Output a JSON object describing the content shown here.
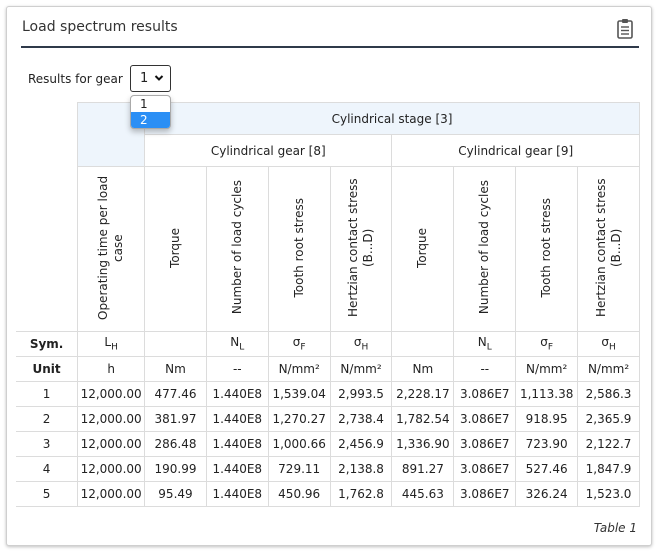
{
  "panel": {
    "title": "Load spectrum results",
    "clipboard_icon": "clipboard-icon"
  },
  "gear_selector": {
    "label": "Results for gear",
    "selected": "1",
    "options": [
      "1",
      "2"
    ],
    "highlighted": "2"
  },
  "table": {
    "stage_header": "Cylindrical stage [3]",
    "gear_headers": [
      "Cylindrical gear [8]",
      "Cylindrical gear [9]"
    ],
    "columns": [
      "Operating time per load case",
      "Torque",
      "Number of load cycles",
      "Tooth root stress",
      "Hertzian contact stress (B...D)",
      "Torque",
      "Number of load cycles",
      "Tooth root stress",
      "Hertzian contact stress (B...D)"
    ],
    "sym_label": "Sym.",
    "symbols": [
      {
        "base": "L",
        "sub": "H"
      },
      {
        "base": "",
        "sub": ""
      },
      {
        "base": "N",
        "sub": "L"
      },
      {
        "base": "σ",
        "sub": "F"
      },
      {
        "base": "σ",
        "sub": "H"
      },
      {
        "base": "",
        "sub": ""
      },
      {
        "base": "N",
        "sub": "L"
      },
      {
        "base": "σ",
        "sub": "F"
      },
      {
        "base": "σ",
        "sub": "H"
      }
    ],
    "unit_label": "Unit",
    "units": [
      "h",
      "Nm",
      "--",
      "N/mm²",
      "N/mm²",
      "Nm",
      "--",
      "N/mm²",
      "N/mm²"
    ],
    "rows": [
      {
        "id": "1",
        "values": [
          "12,000.00",
          "477.46",
          "1.440E8",
          "1,539.04",
          "2,993.5",
          "2,228.17",
          "3.086E7",
          "1,113.38",
          "2,586.3"
        ]
      },
      {
        "id": "2",
        "values": [
          "12,000.00",
          "381.97",
          "1.440E8",
          "1,270.27",
          "2,738.4",
          "1,782.54",
          "3.086E7",
          "918.95",
          "2,365.9"
        ]
      },
      {
        "id": "3",
        "values": [
          "12,000.00",
          "286.48",
          "1.440E8",
          "1,000.66",
          "2,456.9",
          "1,336.90",
          "3.086E7",
          "723.90",
          "2,122.7"
        ]
      },
      {
        "id": "4",
        "values": [
          "12,000.00",
          "190.99",
          "1.440E8",
          "729.11",
          "2,138.8",
          "891.27",
          "3.086E7",
          "527.46",
          "1,847.9"
        ]
      },
      {
        "id": "5",
        "values": [
          "12,000.00",
          "95.49",
          "1.440E8",
          "450.96",
          "1,762.8",
          "445.63",
          "3.086E7",
          "326.24",
          "1,523.0"
        ]
      }
    ],
    "caption": "Table 1"
  }
}
